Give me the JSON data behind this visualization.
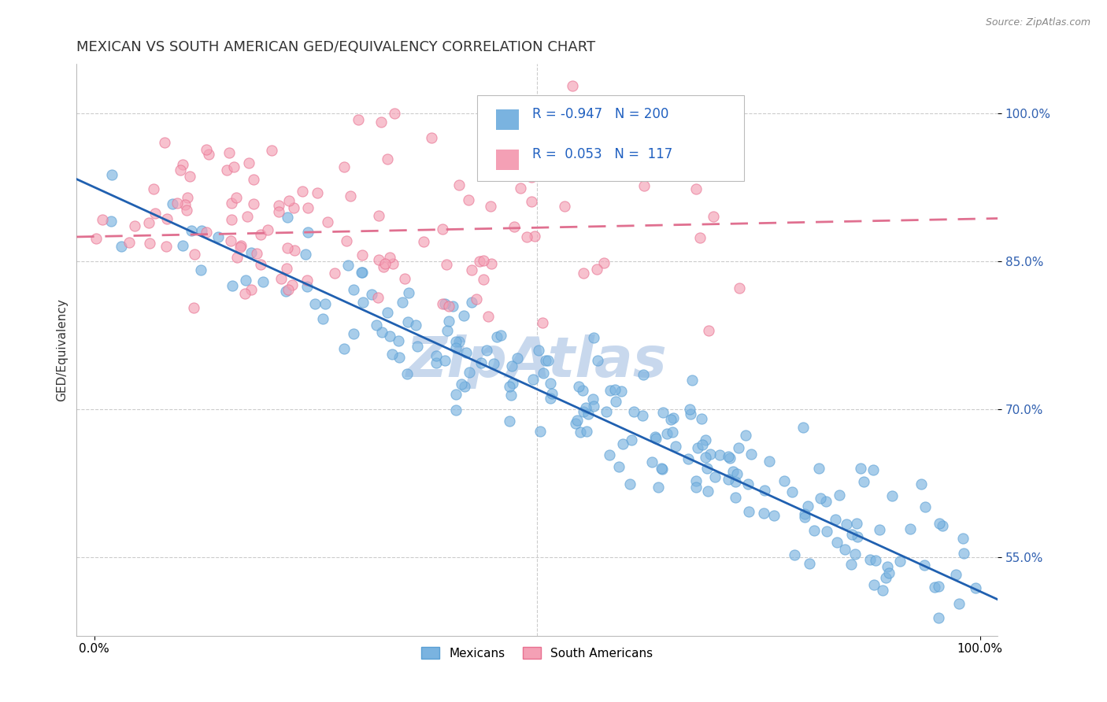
{
  "title": "MEXICAN VS SOUTH AMERICAN GED/EQUIVALENCY CORRELATION CHART",
  "source": "Source: ZipAtlas.com",
  "ylabel": "GED/Equivalency",
  "xlim": [
    -0.02,
    1.02
  ],
  "ylim": [
    0.47,
    1.05
  ],
  "x_ticks": [
    0.0,
    1.0
  ],
  "x_tick_labels": [
    "0.0%",
    "100.0%"
  ],
  "y_ticks": [
    0.55,
    0.7,
    0.85,
    1.0
  ],
  "y_tick_labels": [
    "55.0%",
    "70.0%",
    "85.0%",
    "100.0%"
  ],
  "mexican_color": "#7ab3e0",
  "mexican_edge_color": "#5a9fd4",
  "south_american_color": "#f4a0b5",
  "south_american_edge_color": "#e87090",
  "mexican_R": -0.947,
  "mexican_N": 200,
  "south_american_R": 0.053,
  "south_american_N": 117,
  "legend_blue_label": "Mexicans",
  "legend_pink_label": "South Americans",
  "background_color": "#ffffff",
  "grid_color": "#cccccc",
  "title_fontsize": 13,
  "label_fontsize": 11,
  "tick_fontsize": 11,
  "watermark_text": "ZipAtlas",
  "watermark_color": "#c8d8ed",
  "watermark_fontsize": 52,
  "mex_intercept": 0.925,
  "mex_slope": -0.41,
  "sa_intercept": 0.875,
  "sa_slope": 0.018,
  "mex_noise": 0.032,
  "sa_noise": 0.055
}
